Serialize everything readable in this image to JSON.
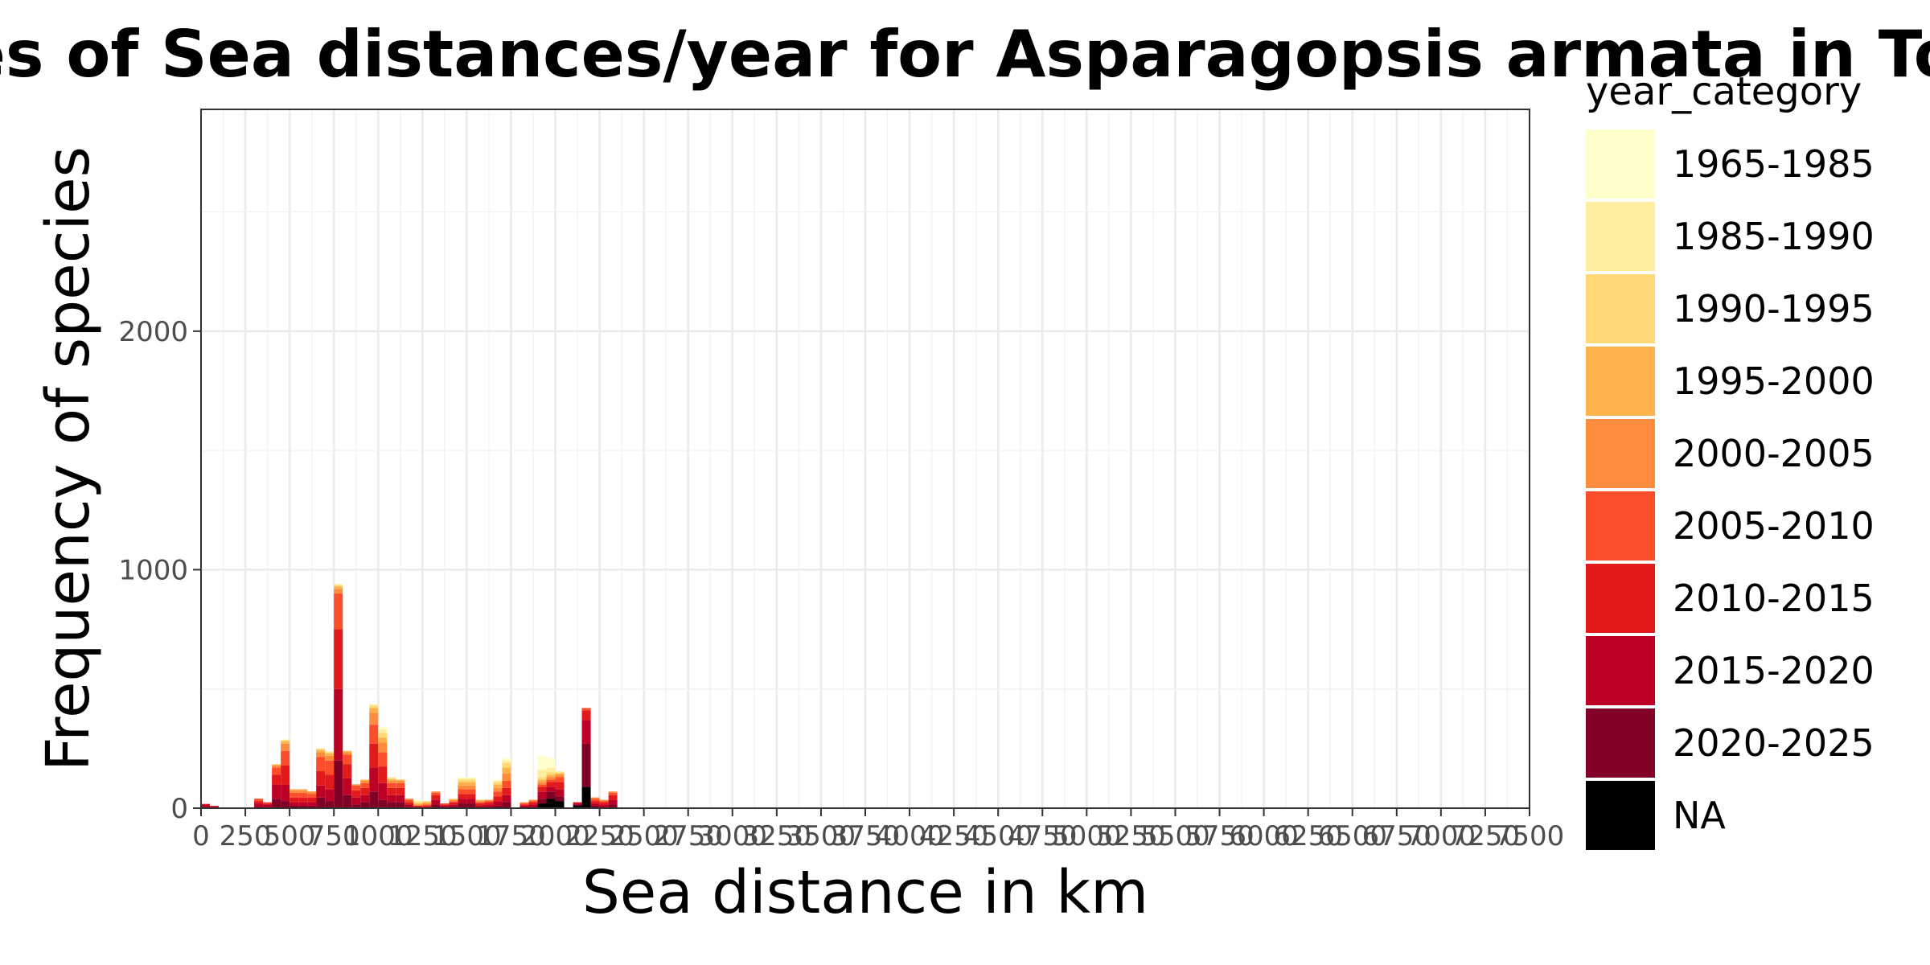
{
  "chart_data": {
    "type": "bar",
    "title": "Frequencies of Sea distances/year for Asparagopsis armata in Torallaa",
    "xlabel": "Sea distance in km",
    "ylabel": "Frequency of species",
    "xlim": [
      0,
      7500
    ],
    "ylim": [
      0,
      2930
    ],
    "bin_width": 50,
    "stacked": true,
    "grid": true,
    "legend_position": "right",
    "legend_title": "year_category",
    "x_ticks": [
      0,
      250,
      500,
      750,
      1000,
      1250,
      1500,
      1750,
      2000,
      2250,
      2500,
      2750,
      3000,
      3250,
      3500,
      3750,
      4000,
      4250,
      4500,
      4750,
      5000,
      5250,
      5500,
      5750,
      6000,
      6250,
      6500,
      6750,
      7000,
      7250,
      7500
    ],
    "x_tick_labels": [
      "0",
      "250",
      "500",
      "750",
      "1000",
      "1250",
      "1500",
      "1750",
      "2000",
      "2250",
      "2500",
      "2750",
      "3000",
      "3250",
      "3500",
      "3750",
      "4000",
      "4250",
      "4500",
      "4750",
      "5000",
      "5250",
      "5500",
      "5750",
      "6000",
      "6250",
      "6500",
      "6750",
      "7000",
      "7250",
      "7500"
    ],
    "y_ticks": [
      0,
      1000,
      2000
    ],
    "y_tick_labels": [
      "0",
      "1000",
      "2000"
    ],
    "categories": [
      "1965-1985",
      "1985-1990",
      "1990-1995",
      "1995-2000",
      "2000-2005",
      "2005-2010",
      "2010-2015",
      "2015-2020",
      "2020-2025",
      "NA"
    ],
    "colors": [
      "#ffffcc",
      "#ffeda0",
      "#fed976",
      "#feb24c",
      "#fd8d3c",
      "#fc4e2a",
      "#e31a1c",
      "#bd0026",
      "#800026",
      "#000000"
    ],
    "bins": [
      {
        "x": 0,
        "values": [
          0,
          0,
          0,
          0,
          0,
          0,
          3,
          10,
          5,
          0
        ]
      },
      {
        "x": 50,
        "values": [
          0,
          0,
          0,
          0,
          0,
          0,
          2,
          5,
          3,
          0
        ]
      },
      {
        "x": 300,
        "values": [
          0,
          0,
          0,
          0,
          0,
          10,
          10,
          15,
          5,
          0
        ]
      },
      {
        "x": 350,
        "values": [
          0,
          0,
          0,
          0,
          0,
          5,
          5,
          10,
          5,
          0
        ]
      },
      {
        "x": 400,
        "values": [
          0,
          0,
          2,
          3,
          10,
          30,
          40,
          60,
          40,
          0
        ]
      },
      {
        "x": 450,
        "values": [
          0,
          3,
          5,
          10,
          30,
          60,
          80,
          70,
          30,
          0
        ]
      },
      {
        "x": 500,
        "values": [
          0,
          0,
          0,
          5,
          10,
          20,
          20,
          15,
          10,
          0
        ]
      },
      {
        "x": 550,
        "values": [
          0,
          0,
          0,
          5,
          10,
          20,
          20,
          15,
          10,
          0
        ]
      },
      {
        "x": 600,
        "values": [
          0,
          0,
          0,
          0,
          10,
          15,
          20,
          15,
          10,
          0
        ]
      },
      {
        "x": 650,
        "values": [
          0,
          0,
          5,
          10,
          20,
          60,
          60,
          50,
          45,
          0
        ]
      },
      {
        "x": 700,
        "values": [
          0,
          3,
          5,
          10,
          20,
          60,
          60,
          50,
          30,
          0
        ]
      },
      {
        "x": 750,
        "values": [
          0,
          5,
          5,
          10,
          20,
          150,
          250,
          300,
          200,
          0
        ]
      },
      {
        "x": 800,
        "values": [
          0,
          0,
          0,
          5,
          10,
          40,
          60,
          70,
          55,
          0
        ]
      },
      {
        "x": 850,
        "values": [
          0,
          0,
          0,
          0,
          5,
          20,
          30,
          30,
          15,
          0
        ]
      },
      {
        "x": 900,
        "values": [
          0,
          0,
          0,
          5,
          10,
          20,
          30,
          30,
          25,
          0
        ]
      },
      {
        "x": 950,
        "values": [
          0,
          5,
          10,
          20,
          50,
          80,
          100,
          100,
          70,
          0
        ]
      },
      {
        "x": 1000,
        "values": [
          10,
          15,
          20,
          20,
          40,
          60,
          70,
          70,
          35,
          0
        ]
      },
      {
        "x": 1050,
        "values": [
          0,
          3,
          5,
          7,
          10,
          20,
          30,
          30,
          25,
          0
        ]
      },
      {
        "x": 1100,
        "values": [
          0,
          0,
          0,
          5,
          10,
          20,
          30,
          30,
          25,
          0
        ]
      },
      {
        "x": 1150,
        "values": [
          0,
          0,
          0,
          0,
          5,
          10,
          10,
          10,
          5,
          0
        ]
      },
      {
        "x": 1200,
        "values": [
          5,
          5,
          5,
          5,
          5,
          0,
          5,
          5,
          0,
          0
        ]
      },
      {
        "x": 1250,
        "values": [
          0,
          0,
          5,
          5,
          5,
          5,
          5,
          5,
          0,
          0
        ]
      },
      {
        "x": 1300,
        "values": [
          0,
          0,
          0,
          0,
          5,
          10,
          20,
          20,
          15,
          0
        ]
      },
      {
        "x": 1350,
        "values": [
          0,
          0,
          0,
          0,
          0,
          5,
          5,
          5,
          5,
          0
        ]
      },
      {
        "x": 1400,
        "values": [
          0,
          0,
          3,
          3,
          5,
          5,
          8,
          8,
          8,
          0
        ]
      },
      {
        "x": 1450,
        "values": [
          5,
          5,
          10,
          15,
          15,
          20,
          20,
          20,
          20,
          0
        ]
      },
      {
        "x": 1500,
        "values": [
          5,
          5,
          10,
          15,
          15,
          20,
          20,
          20,
          20,
          0
        ]
      },
      {
        "x": 1550,
        "values": [
          0,
          0,
          0,
          5,
          5,
          5,
          10,
          5,
          5,
          0
        ]
      },
      {
        "x": 1600,
        "values": [
          0,
          0,
          0,
          0,
          5,
          5,
          10,
          10,
          5,
          0
        ]
      },
      {
        "x": 1650,
        "values": [
          5,
          5,
          10,
          15,
          15,
          20,
          20,
          20,
          10,
          0
        ]
      },
      {
        "x": 1700,
        "values": [
          10,
          10,
          20,
          25,
          30,
          30,
          30,
          30,
          25,
          0
        ]
      },
      {
        "x": 1800,
        "values": [
          0,
          0,
          0,
          0,
          5,
          5,
          5,
          5,
          5,
          0
        ]
      },
      {
        "x": 1850,
        "values": [
          0,
          0,
          0,
          0,
          5,
          5,
          10,
          10,
          5,
          0
        ]
      },
      {
        "x": 1900,
        "values": [
          60,
          30,
          10,
          10,
          10,
          10,
          20,
          30,
          20,
          20
        ]
      },
      {
        "x": 1950,
        "values": [
          40,
          20,
          10,
          10,
          10,
          10,
          20,
          20,
          30,
          40
        ]
      },
      {
        "x": 2000,
        "values": [
          0,
          5,
          5,
          5,
          10,
          20,
          30,
          30,
          20,
          30
        ]
      },
      {
        "x": 2100,
        "values": [
          0,
          0,
          0,
          0,
          0,
          0,
          5,
          5,
          5,
          10
        ]
      },
      {
        "x": 2150,
        "values": [
          0,
          0,
          0,
          0,
          0,
          10,
          40,
          100,
          180,
          90
        ]
      },
      {
        "x": 2200,
        "values": [
          0,
          0,
          0,
          0,
          5,
          10,
          10,
          10,
          10,
          0
        ]
      },
      {
        "x": 2250,
        "values": [
          0,
          0,
          0,
          0,
          5,
          5,
          10,
          10,
          5,
          0
        ]
      },
      {
        "x": 2300,
        "values": [
          0,
          0,
          0,
          0,
          5,
          10,
          20,
          20,
          15,
          0
        ]
      }
    ]
  }
}
